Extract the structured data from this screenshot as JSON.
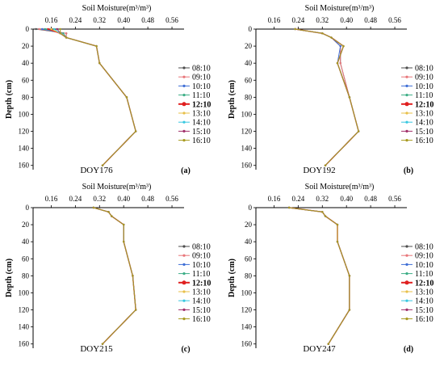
{
  "figure": {
    "x_axis_title": "Soil Moisture(m³/m³)",
    "y_axis_title": "Depth (cm)",
    "x_tick_labels": [
      "0.16",
      "0.24",
      "0.32",
      "0.40",
      "0.48",
      "0.56"
    ],
    "y_tick_labels": [
      "0",
      "20",
      "40",
      "60",
      "80",
      "100",
      "120",
      "140",
      "160"
    ],
    "legend_times": [
      "08:10",
      "09:10",
      "10:10",
      "11:10",
      "12:10",
      "13:10",
      "14:10",
      "15:10",
      "16:10"
    ],
    "highlighted_time": "12:10",
    "series_colors": [
      "#4d4d4d",
      "#e8767a",
      "#3f6fd6",
      "#3cae86",
      "#e02020",
      "#e8c04a",
      "#38c8e0",
      "#a0306a",
      "#a89a20"
    ]
  },
  "chart_data": [
    {
      "type": "line",
      "panel": "a",
      "annotation": "DOY176",
      "xlabel": "Soil Moisture(m³/m³)",
      "ylabel": "Depth (cm)",
      "xlim": [
        0.1,
        0.6
      ],
      "ylim": [
        0,
        165
      ],
      "y_inverted": true,
      "depth": [
        0,
        5,
        10,
        20,
        40,
        80,
        120,
        160
      ],
      "series": [
        {
          "name": "08:10",
          "values": [
            0.11,
            0.21,
            0.21,
            0.31,
            0.32,
            0.41,
            0.44,
            0.33
          ]
        },
        {
          "name": "09:10",
          "values": [
            0.12,
            0.21,
            0.21,
            0.31,
            0.32,
            0.41,
            0.44,
            0.33
          ]
        },
        {
          "name": "10:10",
          "values": [
            0.13,
            0.2,
            0.21,
            0.31,
            0.32,
            0.41,
            0.44,
            0.33
          ]
        },
        {
          "name": "11:10",
          "values": [
            0.14,
            0.2,
            0.21,
            0.31,
            0.32,
            0.41,
            0.44,
            0.33
          ]
        },
        {
          "name": "12:10",
          "values": [
            0.15,
            0.19,
            0.21,
            0.31,
            0.32,
            0.41,
            0.44,
            0.33
          ]
        },
        {
          "name": "13:10",
          "values": [
            0.16,
            0.19,
            0.21,
            0.31,
            0.32,
            0.41,
            0.44,
            0.33
          ]
        },
        {
          "name": "14:10",
          "values": [
            0.17,
            0.19,
            0.21,
            0.31,
            0.32,
            0.41,
            0.44,
            0.33
          ]
        },
        {
          "name": "15:10",
          "values": [
            0.18,
            0.19,
            0.21,
            0.31,
            0.32,
            0.41,
            0.44,
            0.33
          ]
        },
        {
          "name": "16:10",
          "values": [
            0.19,
            0.19,
            0.21,
            0.31,
            0.32,
            0.41,
            0.44,
            0.33
          ]
        }
      ]
    },
    {
      "type": "line",
      "panel": "b",
      "annotation": "DOY192",
      "xlabel": "Soil Moisture(m³/m³)",
      "ylabel": "Depth (cm)",
      "xlim": [
        0.1,
        0.6
      ],
      "ylim": [
        0,
        165
      ],
      "y_inverted": true,
      "depth": [
        0,
        5,
        10,
        20,
        40,
        80,
        120,
        160
      ],
      "series": [
        {
          "name": "08:10",
          "values": [
            0.23,
            0.32,
            0.35,
            0.38,
            0.38,
            0.41,
            0.44,
            0.33
          ]
        },
        {
          "name": "09:10",
          "values": [
            0.23,
            0.32,
            0.35,
            0.38,
            0.38,
            0.41,
            0.44,
            0.33
          ]
        },
        {
          "name": "10:10",
          "values": [
            0.23,
            0.32,
            0.35,
            0.38,
            0.37,
            0.41,
            0.44,
            0.33
          ]
        },
        {
          "name": "11:10",
          "values": [
            0.23,
            0.32,
            0.35,
            0.39,
            0.37,
            0.41,
            0.44,
            0.33
          ]
        },
        {
          "name": "12:10",
          "values": [
            0.23,
            0.32,
            0.35,
            0.39,
            0.37,
            0.41,
            0.44,
            0.33
          ]
        },
        {
          "name": "13:10",
          "values": [
            0.23,
            0.32,
            0.35,
            0.39,
            0.37,
            0.41,
            0.44,
            0.33
          ]
        },
        {
          "name": "14:10",
          "values": [
            0.23,
            0.32,
            0.35,
            0.39,
            0.37,
            0.41,
            0.44,
            0.33
          ]
        },
        {
          "name": "15:10",
          "values": [
            0.23,
            0.32,
            0.35,
            0.39,
            0.37,
            0.41,
            0.44,
            0.33
          ]
        },
        {
          "name": "16:10",
          "values": [
            0.23,
            0.32,
            0.35,
            0.39,
            0.37,
            0.41,
            0.44,
            0.33
          ]
        }
      ]
    },
    {
      "type": "line",
      "panel": "c",
      "annotation": "DOY215",
      "xlabel": "Soil Moisture(m³/m³)",
      "ylabel": "Depth (cm)",
      "xlim": [
        0.1,
        0.6
      ],
      "ylim": [
        0,
        165
      ],
      "y_inverted": true,
      "depth": [
        0,
        5,
        10,
        20,
        40,
        80,
        120,
        160
      ],
      "series": [
        {
          "name": "08:10",
          "values": [
            0.3,
            0.35,
            0.36,
            0.4,
            0.4,
            0.43,
            0.44,
            0.33
          ]
        },
        {
          "name": "09:10",
          "values": [
            0.3,
            0.35,
            0.36,
            0.4,
            0.4,
            0.43,
            0.44,
            0.33
          ]
        },
        {
          "name": "10:10",
          "values": [
            0.3,
            0.35,
            0.36,
            0.4,
            0.4,
            0.43,
            0.44,
            0.33
          ]
        },
        {
          "name": "11:10",
          "values": [
            0.3,
            0.35,
            0.36,
            0.4,
            0.4,
            0.43,
            0.44,
            0.33
          ]
        },
        {
          "name": "12:10",
          "values": [
            0.3,
            0.35,
            0.36,
            0.4,
            0.4,
            0.43,
            0.44,
            0.33
          ]
        },
        {
          "name": "13:10",
          "values": [
            0.3,
            0.35,
            0.36,
            0.4,
            0.4,
            0.43,
            0.44,
            0.33
          ]
        },
        {
          "name": "14:10",
          "values": [
            0.3,
            0.35,
            0.36,
            0.4,
            0.4,
            0.43,
            0.44,
            0.33
          ]
        },
        {
          "name": "15:10",
          "values": [
            0.3,
            0.35,
            0.36,
            0.4,
            0.4,
            0.43,
            0.44,
            0.33
          ]
        },
        {
          "name": "16:10",
          "values": [
            0.3,
            0.35,
            0.36,
            0.4,
            0.4,
            0.43,
            0.44,
            0.33
          ]
        }
      ]
    },
    {
      "type": "line",
      "panel": "d",
      "annotation": "DOY247",
      "xlabel": "Soil Moisture(m³/m³)",
      "ylabel": "Depth (cm)",
      "xlim": [
        0.1,
        0.6
      ],
      "ylim": [
        0,
        165
      ],
      "y_inverted": true,
      "depth": [
        0,
        5,
        10,
        20,
        40,
        80,
        120,
        160
      ],
      "series": [
        {
          "name": "08:10",
          "values": [
            0.21,
            0.32,
            0.33,
            0.37,
            0.37,
            0.41,
            0.41,
            0.34
          ]
        },
        {
          "name": "09:10",
          "values": [
            0.21,
            0.32,
            0.33,
            0.37,
            0.37,
            0.41,
            0.41,
            0.34
          ]
        },
        {
          "name": "10:10",
          "values": [
            0.21,
            0.32,
            0.33,
            0.37,
            0.37,
            0.41,
            0.41,
            0.34
          ]
        },
        {
          "name": "11:10",
          "values": [
            0.21,
            0.32,
            0.33,
            0.37,
            0.37,
            0.41,
            0.41,
            0.34
          ]
        },
        {
          "name": "12:10",
          "values": [
            0.21,
            0.32,
            0.33,
            0.37,
            0.37,
            0.41,
            0.41,
            0.34
          ]
        },
        {
          "name": "13:10",
          "values": [
            0.21,
            0.32,
            0.33,
            0.37,
            0.37,
            0.41,
            0.41,
            0.34
          ]
        },
        {
          "name": "14:10",
          "values": [
            0.21,
            0.32,
            0.33,
            0.37,
            0.37,
            0.41,
            0.41,
            0.34
          ]
        },
        {
          "name": "15:10",
          "values": [
            0.21,
            0.32,
            0.33,
            0.37,
            0.37,
            0.41,
            0.41,
            0.34
          ]
        },
        {
          "name": "16:10",
          "values": [
            0.21,
            0.32,
            0.33,
            0.37,
            0.37,
            0.41,
            0.41,
            0.34
          ]
        }
      ]
    }
  ]
}
